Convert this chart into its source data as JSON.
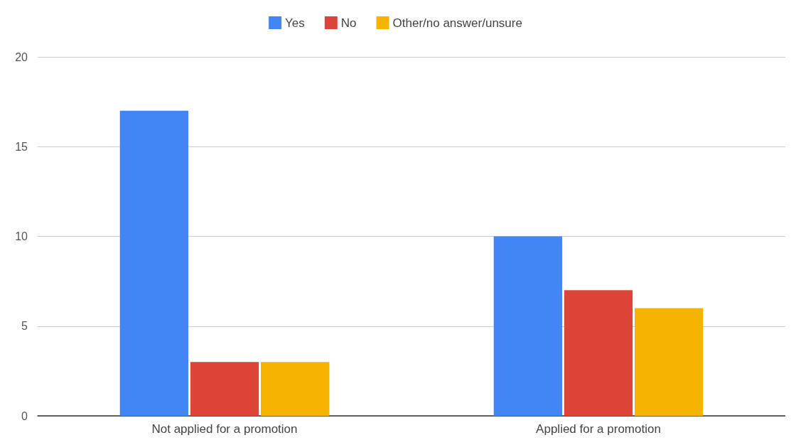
{
  "chart_data": {
    "type": "bar",
    "categories": [
      "Not applied for a promotion",
      "Applied for a promotion"
    ],
    "series": [
      {
        "name": "Yes",
        "color": "#4285f4",
        "values": [
          17,
          10
        ]
      },
      {
        "name": "No",
        "color": "#db4437",
        "values": [
          3,
          7
        ]
      },
      {
        "name": "Other/no answer/unsure",
        "color": "#f4b400",
        "values": [
          3,
          6
        ]
      }
    ],
    "ylim": [
      0,
      20
    ],
    "yticks": [
      0,
      5,
      10,
      15,
      20
    ],
    "grid": "y",
    "legend": "top"
  }
}
